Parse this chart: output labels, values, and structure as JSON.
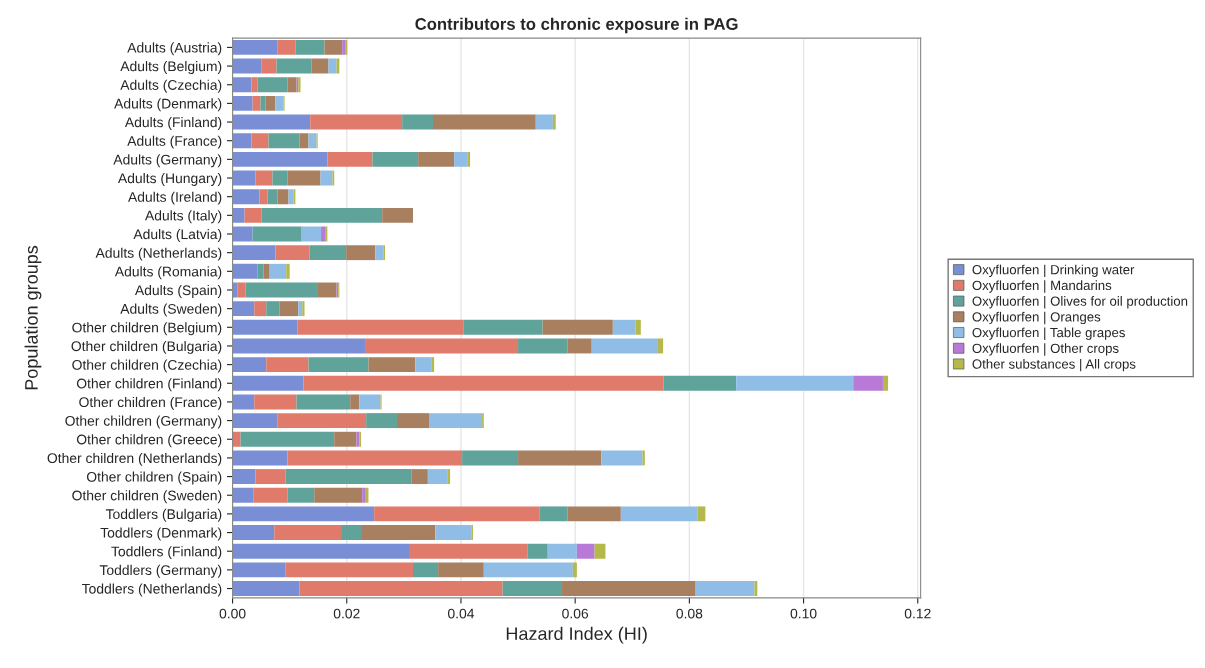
{
  "chart_data": {
    "type": "bar",
    "orientation": "horizontal",
    "stacked": true,
    "title": "Contributors to chronic exposure in PAG",
    "xlabel": "Hazard Index (HI)",
    "ylabel": "Population groups",
    "categories": [
      "Adults (Austria)",
      "Adults (Belgium)",
      "Adults (Czechia)",
      "Adults (Denmark)",
      "Adults (Finland)",
      "Adults (France)",
      "Adults (Germany)",
      "Adults (Hungary)",
      "Adults (Ireland)",
      "Adults (Italy)",
      "Adults (Latvia)",
      "Adults (Netherlands)",
      "Adults (Romania)",
      "Adults (Spain)",
      "Adults (Sweden)",
      "Other children (Belgium)",
      "Other children (Bulgaria)",
      "Other children (Czechia)",
      "Other children (Finland)",
      "Other children (France)",
      "Other children (Germany)",
      "Other children (Greece)",
      "Other children (Netherlands)",
      "Other children (Spain)",
      "Other children (Sweden)",
      "Toddlers (Bulgaria)",
      "Toddlers (Denmark)",
      "Toddlers (Finland)",
      "Toddlers (Germany)",
      "Toddlers (Netherlands)"
    ],
    "series": [
      {
        "name": "Oxyfluorfen | Drinking water",
        "color": "#7a8ed6",
        "values": [
          0.0079,
          0.0051,
          0.0033,
          0.0035,
          0.0136,
          0.0033,
          0.0166,
          0.004,
          0.0047,
          0.0021,
          0.0035,
          0.0075,
          0.0044,
          0.0009,
          0.0038,
          0.0114,
          0.0232,
          0.0059,
          0.0124,
          0.0038,
          0.0079,
          0,
          0.0096,
          0.004,
          0.0037,
          0.0248,
          0.0073,
          0.0309,
          0.0093,
          0.0117
        ]
      },
      {
        "name": "Oxyfluorfen | Mandarins",
        "color": "#e07b6b",
        "values": [
          0.0031,
          0.0026,
          0.0011,
          0.0014,
          0.0161,
          0.003,
          0.0079,
          0.003,
          0.0014,
          0.003,
          0,
          0.006,
          0,
          0.0014,
          0.0021,
          0.0291,
          0.0268,
          0.0074,
          0.0631,
          0.0074,
          0.0155,
          0.0014,
          0.0306,
          0.0053,
          0.0059,
          0.029,
          0.0117,
          0.0208,
          0.0223,
          0.0356
        ]
      },
      {
        "name": "Oxyfluorfen | Olives for oil production",
        "color": "#5fa39a",
        "values": [
          0.0051,
          0.0061,
          0.0052,
          0.0009,
          0.0054,
          0.0054,
          0.008,
          0.0026,
          0.0018,
          0.0211,
          0.0086,
          0.0064,
          0.001,
          0.0125,
          0.0023,
          0.0138,
          0.0087,
          0.0105,
          0.0127,
          0.0094,
          0.0054,
          0.0164,
          0.0098,
          0.022,
          0.0047,
          0.0049,
          0.0035,
          0.0035,
          0.0044,
          0.0104
        ]
      },
      {
        "name": "Oxyfluorfen | Oranges",
        "color": "#a88060",
        "values": [
          0.0031,
          0.003,
          0.0016,
          0.0017,
          0.018,
          0.0016,
          0.0063,
          0.0058,
          0.0019,
          0.0054,
          0,
          0.0051,
          0.0011,
          0.0034,
          0.0033,
          0.0123,
          0.0042,
          0.0082,
          0,
          0.0016,
          0.0056,
          0.0039,
          0.0146,
          0.0029,
          0.0084,
          0.0093,
          0.013,
          0,
          0.008,
          0.0234
        ]
      },
      {
        "name": "Oxyfluorfen | Table grapes",
        "color": "#8fbde6",
        "values": [
          0,
          0.0014,
          0,
          0.0014,
          0.003,
          0.0014,
          0.0024,
          0.0021,
          0.0009,
          0,
          0.0034,
          0.0014,
          0.0029,
          0,
          0.0007,
          0.004,
          0.0116,
          0.0029,
          0.0205,
          0.0037,
          0.0093,
          0,
          0.0072,
          0.0035,
          0,
          0.0134,
          0.0064,
          0.0051,
          0.0156,
          0.0103
        ]
      },
      {
        "name": "Oxyfluorfen | Other crops",
        "color": "#b87ad6",
        "values": [
          0.0005,
          0,
          0.0003,
          0,
          0,
          0,
          0,
          0,
          0,
          0,
          0.0007,
          0,
          0,
          0.0003,
          0,
          0,
          0,
          0,
          0.0052,
          0,
          0,
          0.0005,
          0,
          0,
          0.0005,
          0,
          0,
          0.0031,
          0,
          0
        ]
      },
      {
        "name": "Other substances | All crops",
        "color": "#b5b84a",
        "values": [
          0.0004,
          0.0005,
          0.0004,
          0.0002,
          0.0005,
          0.0002,
          0.0004,
          0.0003,
          0.0003,
          0,
          0.0004,
          0.0003,
          0.0006,
          0.0002,
          0.0004,
          0.0009,
          0.0009,
          0.0004,
          0.0009,
          0.0002,
          0.0003,
          0.0003,
          0.0004,
          0.0004,
          0.0006,
          0.0014,
          0.0002,
          0.0019,
          0.0007,
          0.0005
        ]
      }
    ],
    "xlim": [
      0,
      0.1205
    ],
    "xticks": [
      {
        "value": 0,
        "label": "0.00"
      },
      {
        "value": 0.02,
        "label": "0.02"
      },
      {
        "value": 0.04,
        "label": "0.04"
      },
      {
        "value": 0.06,
        "label": "0.06"
      },
      {
        "value": 0.08,
        "label": "0.08"
      },
      {
        "value": 0.1,
        "label": "0.10"
      },
      {
        "value": 0.12,
        "label": "0.12"
      }
    ],
    "grid": "x",
    "legend": "right"
  }
}
